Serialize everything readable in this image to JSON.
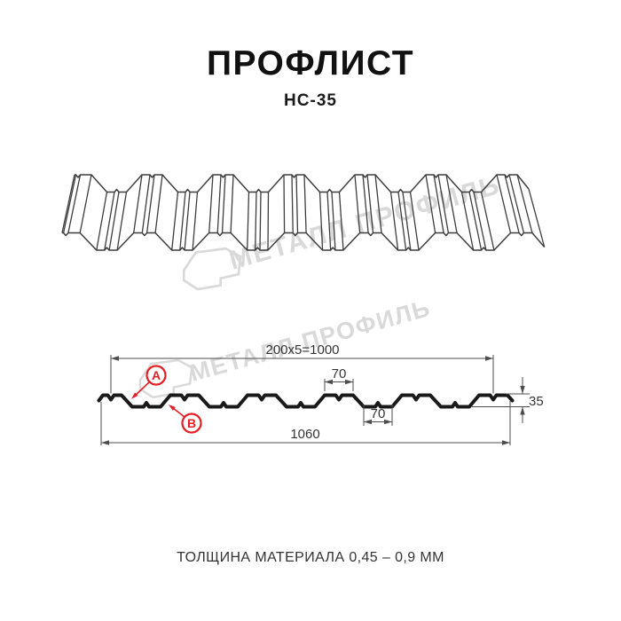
{
  "header": {
    "title": "ПРОФЛИСТ",
    "subtitle": "НС-35"
  },
  "watermark": {
    "text": "МЕТАЛЛ ПРОФИЛЬ",
    "color": "#d9d9d9"
  },
  "callouts": {
    "a": "A",
    "b": "B"
  },
  "dimensions": {
    "working_width": "200x5=1000",
    "crest_width": "70",
    "trough_width": "70",
    "profile_height": "35",
    "overall_width": "1060"
  },
  "footer": {
    "thickness_note": "ТОЛЩИНА МАТЕРИАЛА 0,45 – 0,9 ММ"
  },
  "colors": {
    "background": "#ffffff",
    "drawing_line": "#3d3d3d",
    "profile_line": "#1a1a1a",
    "dimension_line": "#4d4d4d",
    "accent_red": "#e31e24",
    "watermark": "#d9d9d9"
  },
  "diagram": {
    "type": "profiled-sheet-technical-drawing",
    "product": "НС-35",
    "module_mm": 200,
    "modules": 5,
    "working_width_mm": 1000,
    "overall_width_mm": 1060,
    "crest_width_mm": 70,
    "trough_width_mm": 70,
    "profile_height_mm": 35,
    "thickness_min_mm": 0.45,
    "thickness_max_mm": 0.9
  }
}
